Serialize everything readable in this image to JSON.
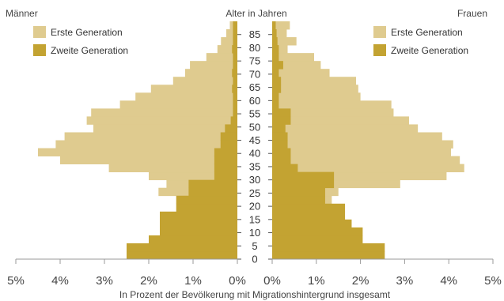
{
  "chart_data": {
    "type": "bar",
    "subtype": "population-pyramid",
    "title": "Alter in Jahren",
    "xlabel": "In Prozent der Bevölkerung mit Migrationshintergrund insgesamt",
    "left_label": "Männer",
    "right_label": "Frauen",
    "xlim": [
      0,
      5
    ],
    "x_ticks_left": [
      "5%",
      "4%",
      "3%",
      "2%",
      "1%",
      "0%"
    ],
    "x_ticks_right": [
      "0%",
      "1%",
      "2%",
      "3%",
      "4%",
      "5%"
    ],
    "age_ticks": [
      "0",
      "5",
      "10",
      "15",
      "20",
      "25",
      "30",
      "35",
      "40",
      "45",
      "50",
      "55",
      "60",
      "65",
      "70",
      "75",
      "80",
      "85"
    ],
    "age_groups": [
      "0-2",
      "3-5",
      "6-8",
      "9-11",
      "12-14",
      "15-17",
      "18-20",
      "21-23",
      "24-26",
      "27-29",
      "30-32",
      "33-35",
      "36-38",
      "39-41",
      "42-44",
      "45-47",
      "48-50",
      "51-53",
      "54-56",
      "57-59",
      "60-62",
      "63-65",
      "66-68",
      "69-71",
      "72-74",
      "75-77",
      "78-80",
      "81-83",
      "84-86",
      "87-89"
    ],
    "legend": {
      "position": "top",
      "first": "Erste Generation",
      "second": "Zweite Generation"
    },
    "colors": {
      "first": "#dfcb8f",
      "second": "#c3a332"
    },
    "series": [
      {
        "name": "Männer – Erste Generation",
        "side": "left",
        "values": [
          0.28,
          0.35,
          0.6,
          0.77,
          0.95,
          1.1,
          1.25,
          1.2,
          1.78,
          1.6,
          2.0,
          2.9,
          4.0,
          4.5,
          4.1,
          3.9,
          3.25,
          3.4,
          3.3,
          2.65,
          2.3,
          1.95,
          1.45,
          1.18,
          1.07,
          0.7,
          0.45,
          0.37,
          0.25,
          0.17
        ]
      },
      {
        "name": "Männer – Zweite Generation",
        "side": "left",
        "values": [
          2.5,
          2.5,
          2.0,
          1.75,
          1.75,
          1.75,
          1.38,
          1.38,
          1.1,
          1.1,
          0.52,
          0.52,
          0.52,
          0.52,
          0.38,
          0.38,
          0.28,
          0.15,
          0.1,
          0.1,
          0.1,
          0.12,
          0.1,
          0.12,
          0.1,
          0.1,
          0.12,
          0.1,
          0.1,
          0.1
        ]
      },
      {
        "name": "Frauen – Erste Generation",
        "side": "right",
        "values": [
          0.25,
          0.33,
          0.75,
          0.95,
          0.95,
          0.85,
          1.3,
          1.35,
          1.5,
          2.9,
          3.95,
          4.35,
          4.25,
          4.05,
          4.1,
          3.85,
          3.3,
          3.1,
          2.75,
          2.7,
          2.0,
          1.95,
          1.9,
          1.3,
          1.1,
          0.95,
          0.35,
          0.55,
          0.33,
          0.4
        ]
      },
      {
        "name": "Frauen – Zweite Generation",
        "side": "right",
        "values": [
          2.55,
          2.55,
          2.05,
          2.05,
          1.8,
          1.65,
          1.65,
          1.2,
          1.2,
          1.4,
          1.4,
          0.58,
          0.42,
          0.42,
          0.35,
          0.35,
          0.3,
          0.42,
          0.42,
          0.15,
          0.15,
          0.2,
          0.2,
          0.15,
          0.25,
          0.15,
          0.15,
          0.12,
          0.1,
          0.08
        ]
      }
    ]
  }
}
